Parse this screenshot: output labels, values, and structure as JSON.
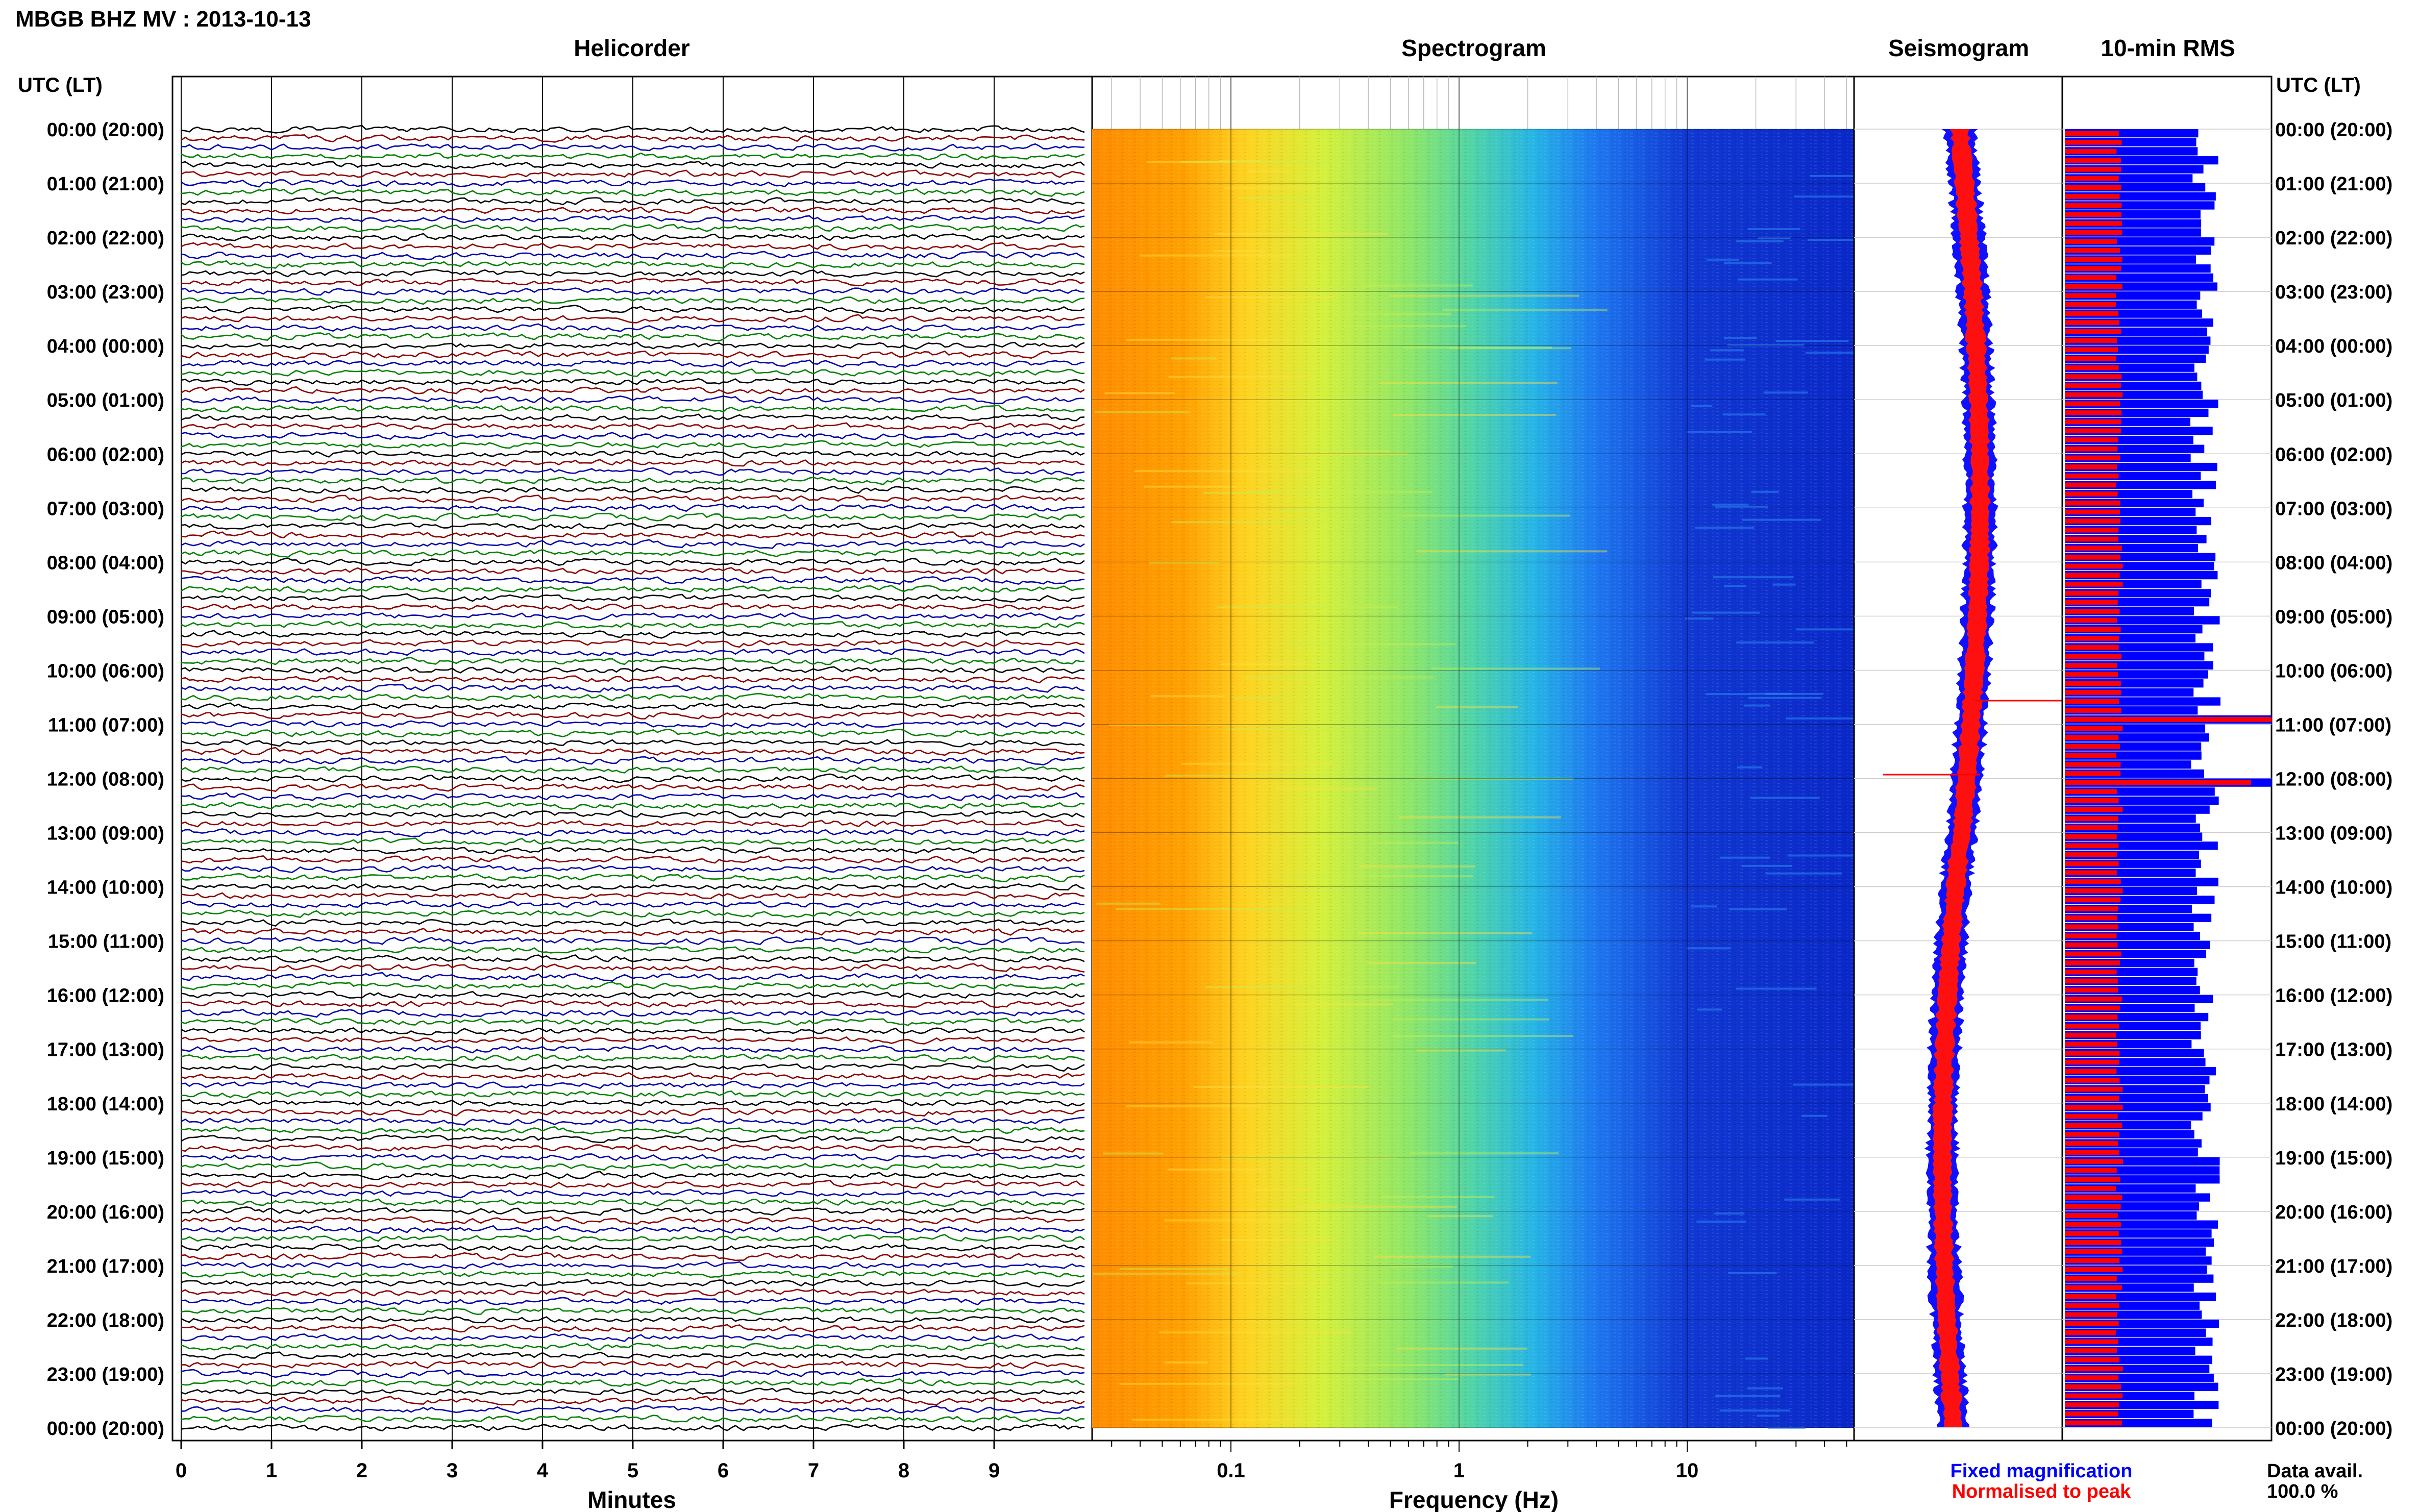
{
  "header": {
    "title": "MBGB BHZ MV : 2013-10-13"
  },
  "panels": {
    "helicorder": "Helicorder",
    "spectrogram": "Spectrogram",
    "seismogram": "Seismogram",
    "rms": "10-min RMS"
  },
  "time_axis_label": "UTC (LT)",
  "time_labels": [
    "00:00 (20:00)",
    "01:00 (21:00)",
    "02:00 (22:00)",
    "03:00 (23:00)",
    "04:00 (00:00)",
    "05:00 (01:00)",
    "06:00 (02:00)",
    "07:00 (03:00)",
    "08:00 (04:00)",
    "09:00 (05:00)",
    "10:00 (06:00)",
    "11:00 (07:00)",
    "12:00 (08:00)",
    "13:00 (09:00)",
    "14:00 (10:00)",
    "15:00 (11:00)",
    "16:00 (12:00)",
    "17:00 (13:00)",
    "18:00 (14:00)",
    "19:00 (15:00)",
    "20:00 (16:00)",
    "21:00 (17:00)",
    "22:00 (18:00)",
    "23:00 (19:00)",
    "00:00 (20:00)"
  ],
  "helicorder_axis": {
    "label": "Minutes",
    "ticks": [
      "0",
      "1",
      "2",
      "3",
      "4",
      "5",
      "6",
      "7",
      "8",
      "9"
    ]
  },
  "spectrogram_axis": {
    "label": "Frequency (Hz)",
    "ticks": [
      "0.1",
      "1",
      "10"
    ]
  },
  "legend": {
    "fixed": "Fixed magnification",
    "normalised": "Normalised to peak",
    "fixed_color": "#0000ff",
    "normalised_color": "#ff0000"
  },
  "data_avail": {
    "label": "Data avail.",
    "value": "100.0 %"
  },
  "trace_colors": [
    "#000000",
    "#8b0000",
    "#0000aa",
    "#008000"
  ],
  "chart_data": [
    {
      "type": "line",
      "title": "Helicorder",
      "xlabel": "Minutes",
      "xlim": [
        0,
        10
      ],
      "rows": 144,
      "row_minutes": 10,
      "colors": [
        "#000000",
        "#8b0000",
        "#0000aa",
        "#008000"
      ]
    },
    {
      "type": "heatmap",
      "title": "Spectrogram",
      "xlabel": "Frequency (Hz)",
      "xscale": "log",
      "xlim": [
        0.02,
        45
      ],
      "colormap": "jet"
    },
    {
      "type": "area",
      "title": "Seismogram",
      "series": [
        {
          "name": "Fixed magnification",
          "color": "#0000ff"
        },
        {
          "name": "Normalised to peak",
          "color": "#ff0000"
        }
      ]
    },
    {
      "type": "bar",
      "title": "10-min RMS",
      "orientation": "horizontal",
      "bins": 144,
      "peaks_at": [
        "10:50",
        "12:00"
      ],
      "series": [
        {
          "name": "Fixed magnification",
          "color": "#0000ff"
        },
        {
          "name": "Normalised to peak",
          "color": "#ff0000"
        }
      ]
    }
  ]
}
